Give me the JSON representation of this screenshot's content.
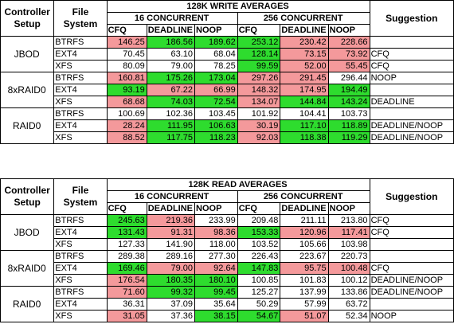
{
  "colors": {
    "worse": "#f4999b",
    "better": "#2edc2e"
  },
  "tables": [
    {
      "title": "128K WRITE AVERAGES",
      "col_setup": [
        "Controller",
        "Setup"
      ],
      "col_fs": [
        "File",
        "System"
      ],
      "group16": "16 CONCURRENT",
      "group256": "256 CONCURRENT",
      "suggestion_header": "Suggestion",
      "sched": [
        "CFQ",
        "DEADLINE",
        "NOOP",
        "CFQ",
        "DEADLINE",
        "NOOP"
      ],
      "groups": [
        {
          "setup": "JBOD",
          "rows": [
            {
              "fs": "BTRFS",
              "v": [
                "146.25",
                "186.56",
                "189.62",
                "253.12",
                "230.42",
                "228.66"
              ],
              "c": [
                "r",
                "g",
                "g",
                "g",
                "r",
                "r"
              ],
              "s": ""
            },
            {
              "fs": "EXT4",
              "v": [
                "70.45",
                "63.10",
                "68.04",
                "128.14",
                "73.15",
                "73.92"
              ],
              "c": [
                "",
                "",
                "",
                "g",
                "r",
                "r"
              ],
              "s": "CFQ"
            },
            {
              "fs": "XFS",
              "v": [
                "80.09",
                "79.00",
                "78.25",
                "99.59",
                "52.00",
                "55.45"
              ],
              "c": [
                "",
                "",
                "",
                "g",
                "r",
                "r"
              ],
              "s": "CFQ"
            }
          ]
        },
        {
          "setup": "8xRAID0",
          "rows": [
            {
              "fs": "BTRFS",
              "v": [
                "160.81",
                "175.26",
                "173.04",
                "297.26",
                "291.45",
                "296.44"
              ],
              "c": [
                "r",
                "g",
                "g",
                "r",
                "r",
                ""
              ],
              "s": "NOOP"
            },
            {
              "fs": "EXT4",
              "v": [
                "93.19",
                "67.22",
                "66.99",
                "148.32",
                "174.95",
                "194.49"
              ],
              "c": [
                "g",
                "r",
                "r",
                "r",
                "r",
                "g"
              ],
              "s": ""
            },
            {
              "fs": "XFS",
              "v": [
                "68.68",
                "74.03",
                "72.54",
                "134.07",
                "144.84",
                "143.24"
              ],
              "c": [
                "r",
                "g",
                "g",
                "r",
                "g",
                "g"
              ],
              "s": "DEADLINE"
            }
          ]
        },
        {
          "setup": "RAID0",
          "rows": [
            {
              "fs": "BTRFS",
              "v": [
                "100.69",
                "102.36",
                "103.45",
                "101.92",
                "104.41",
                "103.73"
              ],
              "c": [
                "",
                "",
                "",
                "",
                "",
                ""
              ],
              "s": ""
            },
            {
              "fs": "EXT4",
              "v": [
                "28.24",
                "111.95",
                "106.63",
                "30.19",
                "117.10",
                "118.89"
              ],
              "c": [
                "r",
                "g",
                "g",
                "r",
                "g",
                "g"
              ],
              "s": "DEADLINE/NOOP"
            },
            {
              "fs": "XFS",
              "v": [
                "88.52",
                "117.75",
                "118.23",
                "92.03",
                "118.38",
                "119.29"
              ],
              "c": [
                "r",
                "g",
                "g",
                "r",
                "g",
                "g"
              ],
              "s": "DEADLINE/NOOP"
            }
          ]
        }
      ]
    },
    {
      "title": "128K READ AVERAGES",
      "col_setup": [
        "Controller",
        "Setup"
      ],
      "col_fs": [
        "File",
        "System"
      ],
      "group16": "16 CONCURRENT",
      "group256": "256 CONCURRENT",
      "suggestion_header": "Suggestion",
      "sched": [
        "CFQ",
        "DEADLINE",
        "NOOP",
        "CFQ",
        "DEADLINE",
        "NOOP"
      ],
      "groups": [
        {
          "setup": "JBOD",
          "rows": [
            {
              "fs": "BTRFS",
              "v": [
                "245.63",
                "219.36",
                "233.99",
                "209.48",
                "211.11",
                "213.80"
              ],
              "c": [
                "g",
                "r",
                "",
                "",
                "",
                ""
              ],
              "s": "CFQ"
            },
            {
              "fs": "EXT4",
              "v": [
                "131.43",
                "91.31",
                "98.36",
                "153.33",
                "120.96",
                "117.41"
              ],
              "c": [
                "g",
                "r",
                "r",
                "g",
                "r",
                "r"
              ],
              "s": "CFQ"
            },
            {
              "fs": "XFS",
              "v": [
                "127.33",
                "141.90",
                "118.00",
                "103.52",
                "105.66",
                "103.98"
              ],
              "c": [
                "",
                "",
                "",
                "",
                "",
                ""
              ],
              "s": ""
            }
          ]
        },
        {
          "setup": "8xRAID0",
          "rows": [
            {
              "fs": "BTRFS",
              "v": [
                "289.38",
                "289.16",
                "277.30",
                "226.43",
                "223.67",
                "220.73"
              ],
              "c": [
                "",
                "",
                "",
                "",
                "",
                ""
              ],
              "s": ""
            },
            {
              "fs": "EXT4",
              "v": [
                "169.46",
                "79.00",
                "92.64",
                "147.83",
                "95.75",
                "100.48"
              ],
              "c": [
                "g",
                "r",
                "r",
                "g",
                "r",
                "r"
              ],
              "s": "CFQ"
            },
            {
              "fs": "XFS",
              "v": [
                "176.54",
                "180.35",
                "180.10",
                "100.85",
                "101.83",
                "100.12"
              ],
              "c": [
                "r",
                "g",
                "g",
                "",
                "",
                ""
              ],
              "s": "DEADLINE/NOOP"
            }
          ]
        },
        {
          "setup": "RAID0",
          "rows": [
            {
              "fs": "BTRFS",
              "v": [
                "71.60",
                "99.32",
                "99.45",
                "125.27",
                "137.99",
                "133.86"
              ],
              "c": [
                "r",
                "g",
                "g",
                "",
                "",
                ""
              ],
              "s": "DEADLINE/NOOP"
            },
            {
              "fs": "EXT4",
              "v": [
                "36.31",
                "37.09",
                "35.64",
                "50.29",
                "57.99",
                "63.72"
              ],
              "c": [
                "",
                "",
                "",
                "",
                "",
                ""
              ],
              "s": ""
            },
            {
              "fs": "XFS",
              "v": [
                "31.05",
                "37.36",
                "38.15",
                "54.67",
                "51.07",
                "52.34"
              ],
              "c": [
                "r",
                "",
                "g",
                "g",
                "r",
                ""
              ],
              "s": "NOOP"
            }
          ]
        }
      ]
    }
  ]
}
